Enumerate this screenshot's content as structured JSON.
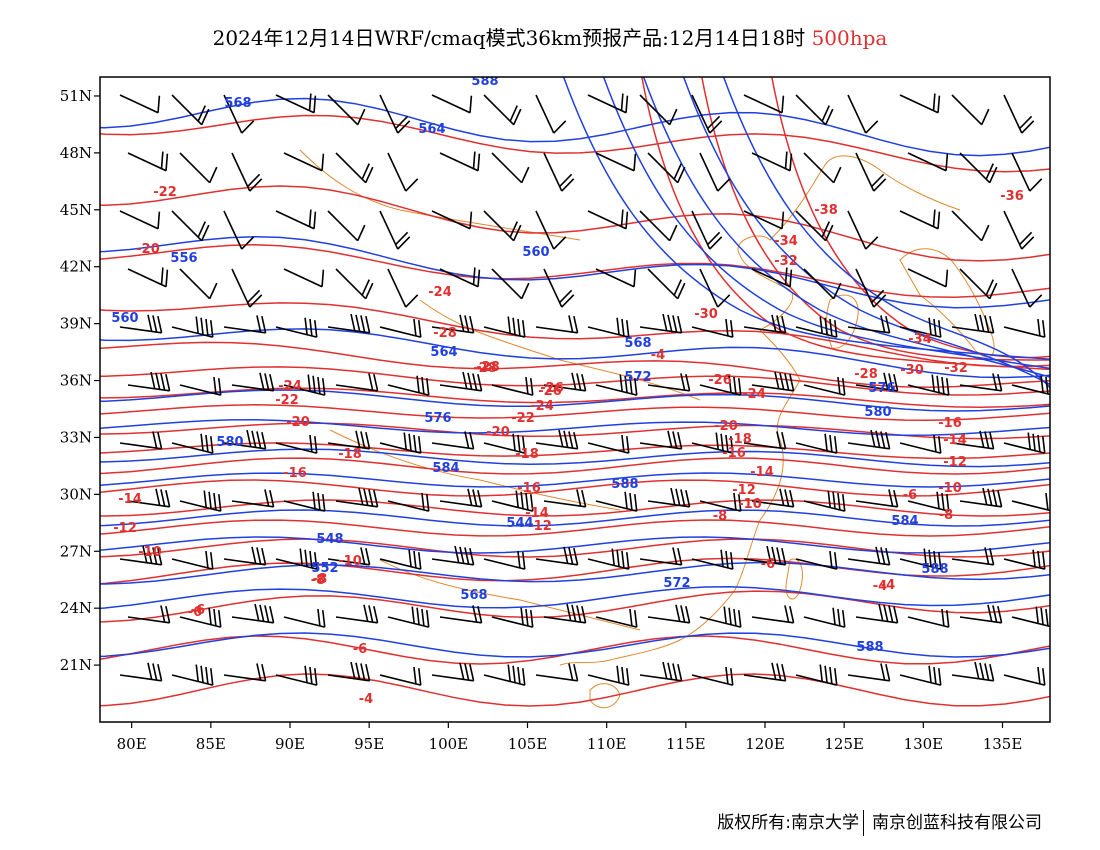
{
  "title": {
    "main": "2024年12月14日WRF/cmaq模式36km预报产品:12月14日18时",
    "level": "500hpa"
  },
  "colors": {
    "height_contour": "#2040e0",
    "temperature_contour": "#e03030",
    "coastline": "#e08a30",
    "wind_barb": "#000000",
    "frame": "#000000"
  },
  "axes": {
    "lon_labels": [
      "80E",
      "85E",
      "90E",
      "95E",
      "100E",
      "105E",
      "110E",
      "115E",
      "120E",
      "125E",
      "130E",
      "135E"
    ],
    "lat_labels": [
      "51N",
      "48N",
      "45N",
      "42N",
      "39N",
      "36N",
      "33N",
      "30N",
      "27N",
      "24N",
      "21N"
    ],
    "lon_range": [
      78,
      138
    ],
    "lat_range": [
      18,
      52
    ]
  },
  "height_labels": [
    "588",
    "568",
    "564",
    "560",
    "556",
    "560",
    "564",
    "568",
    "572",
    "576",
    "580",
    "584",
    "588",
    "544",
    "548",
    "552",
    "568",
    "572",
    "576",
    "580",
    "584",
    "588",
    "588"
  ],
  "temperature_labels": [
    "-22",
    "-20",
    "-24",
    "-28",
    "-28",
    "-26",
    "-24",
    "-22",
    "-20",
    "-18",
    "-16",
    "-14",
    "-12",
    "-10",
    "-8",
    "-6",
    "-6",
    "-4",
    "-30",
    "-34",
    "-32",
    "-36",
    "-38",
    "-34",
    "-30",
    "-32",
    "-28",
    "-26",
    "-24",
    "-20",
    "-18",
    "-16",
    "-14",
    "-12",
    "-10",
    "-8",
    "-6",
    "-4",
    "-16",
    "-14",
    "-12",
    "-10",
    "-8",
    "-6",
    "-4",
    "-28",
    "-26",
    "-24",
    "-22",
    "-20",
    "-18",
    "-16",
    "-14",
    "-12",
    "-10",
    "-8",
    "-6",
    "-4"
  ],
  "footer": {
    "left": "版权所有:南京大学",
    "right": "南京创蓝科技有限公司"
  }
}
